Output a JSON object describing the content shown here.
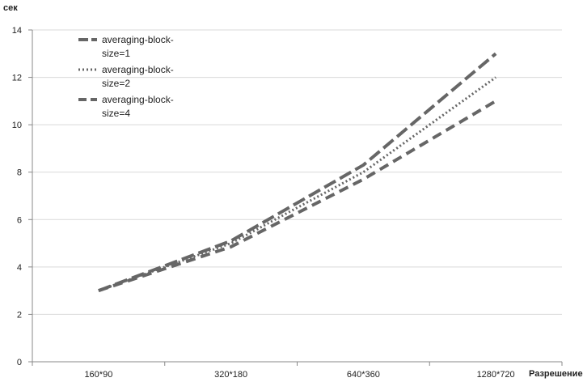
{
  "chart_data": {
    "type": "line",
    "title": "",
    "xlabel": "Разрешение",
    "ylabel": "сек",
    "categories": [
      "160*90",
      "320*180",
      "640*360",
      "1280*720"
    ],
    "ylim": [
      0,
      14
    ],
    "y_ticks": [
      "0",
      "2",
      "4",
      "6",
      "8",
      "10",
      "12",
      "14"
    ],
    "grid": true,
    "legend_position": "top-left",
    "series": [
      {
        "name": "averaging-block-size=1",
        "name_lines": [
          "averaging-block-",
          "size=1"
        ],
        "values": [
          3.0,
          5.1,
          8.3,
          13.0
        ],
        "dash": "long-dash",
        "color": "#666666"
      },
      {
        "name": "averaging-block-size=2",
        "name_lines": [
          "averaging-block-",
          "size=2"
        ],
        "values": [
          3.0,
          5.0,
          8.0,
          12.0
        ],
        "dash": "dotted",
        "color": "#666666"
      },
      {
        "name": "averaging-block-size=4",
        "name_lines": [
          "averaging-block-",
          "size=4"
        ],
        "values": [
          3.0,
          4.85,
          7.7,
          11.0
        ],
        "dash": "dashed",
        "color": "#666666"
      }
    ]
  }
}
